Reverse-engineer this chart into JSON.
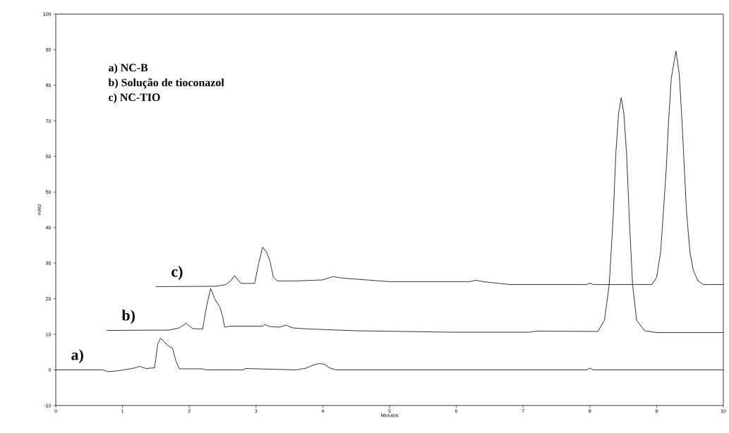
{
  "chart_data": {
    "type": "line",
    "xlabel": "Minutes",
    "ylabel": "mAU",
    "annotations": [
      "a) NC-B",
      "b) Solução de tioconazol",
      "c) NC-TIO"
    ],
    "xlim": [
      0,
      10
    ],
    "ylim": [
      -10,
      100
    ],
    "xticks": [
      0,
      1,
      2,
      3,
      4,
      5,
      6,
      7,
      8,
      9,
      10
    ],
    "yticks": [
      -10,
      0,
      10,
      20,
      30,
      40,
      50,
      60,
      70,
      80,
      90,
      100
    ],
    "grid": false,
    "marker": "none",
    "line_style": "solid",
    "series": [
      {
        "name": "a)",
        "color": "#000000",
        "x": [
          0,
          0.7,
          0.79,
          0.95,
          1.15,
          1.26,
          1.35,
          1.48,
          1.53,
          1.57,
          1.62,
          1.68,
          1.75,
          1.8,
          1.85,
          2.2,
          2.25,
          2.8,
          2.85,
          3.6,
          3.75,
          3.88,
          3.95,
          4.02,
          4.1,
          4.2,
          7.95,
          8.0,
          8.05,
          10
        ],
        "values": [
          0,
          0,
          -0.5,
          -0.2,
          0.4,
          1.0,
          0.4,
          0.6,
          7.5,
          8.9,
          8.0,
          6.8,
          6.1,
          2.5,
          0.3,
          0.3,
          0,
          0,
          0.4,
          0,
          0.5,
          1.5,
          1.8,
          1.6,
          0.6,
          0,
          0,
          0.5,
          0,
          0
        ]
      },
      {
        "name": "b)",
        "color": "#000000",
        "x": [
          0.76,
          1.7,
          1.85,
          1.95,
          2.05,
          2.2,
          2.26,
          2.32,
          2.38,
          2.46,
          2.5,
          2.53,
          2.62,
          3.1,
          3.13,
          3.2,
          3.35,
          3.45,
          3.55,
          3.8,
          4.5,
          5.9,
          7.1,
          7.2,
          8.12,
          8.22,
          8.29,
          8.35,
          8.39,
          8.43,
          8.47,
          8.51,
          8.55,
          8.59,
          8.64,
          8.7,
          8.82,
          9.0,
          10
        ],
        "values": [
          11.1,
          11.2,
          11.8,
          13.1,
          11.6,
          11.5,
          18,
          22.9,
          20,
          17.6,
          15,
          12.0,
          12.3,
          12.3,
          12.8,
          12.2,
          12.0,
          12.6,
          11.8,
          11.5,
          11.0,
          10.6,
          10.6,
          10.9,
          10.8,
          14,
          24,
          43,
          61,
          72,
          76.5,
          72,
          61,
          43,
          24,
          14,
          11,
          10.5,
          10.5
        ]
      },
      {
        "name": "c)",
        "color": "#000000",
        "x": [
          1.5,
          2.4,
          2.55,
          2.62,
          2.68,
          2.74,
          2.78,
          2.98,
          3.04,
          3.1,
          3.16,
          3.21,
          3.26,
          3.32,
          3.6,
          4.0,
          4.15,
          4.3,
          4.5,
          5.0,
          6.2,
          6.3,
          6.4,
          6.8,
          7.95,
          8.0,
          8.05,
          8.93,
          9.0,
          9.06,
          9.1,
          9.14,
          9.18,
          9.22,
          9.29,
          9.34,
          9.38,
          9.42,
          9.45,
          9.5,
          9.55,
          9.62,
          9.7,
          10
        ],
        "values": [
          23.4,
          23.5,
          24,
          25,
          26.5,
          25,
          24.3,
          24.3,
          30,
          34.5,
          33,
          30.5,
          26,
          25,
          25,
          25.3,
          26.2,
          25.8,
          25.5,
          24.8,
          24.8,
          25.2,
          24.8,
          24.0,
          24.0,
          24.4,
          24.0,
          24,
          26,
          33,
          44,
          55,
          70,
          82,
          89.6,
          83,
          70,
          55,
          44,
          33,
          28,
          25,
          24,
          24
        ]
      }
    ]
  }
}
